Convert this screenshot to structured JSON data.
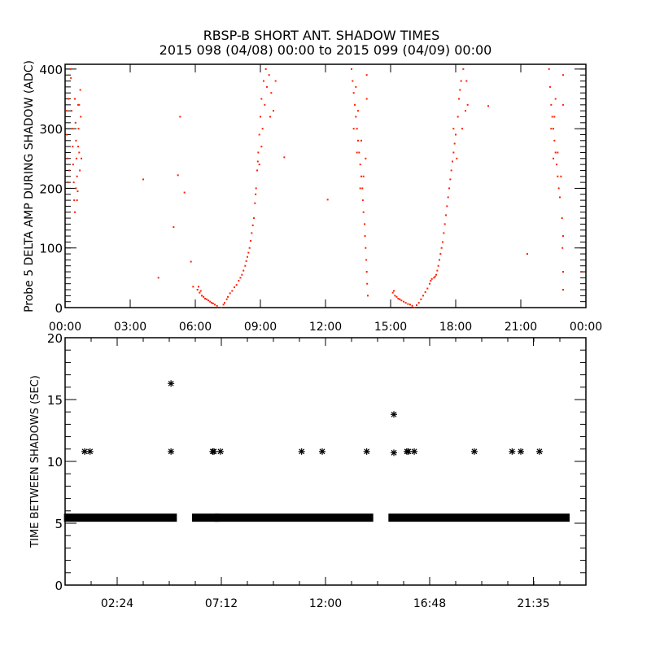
{
  "chart_data": [
    {
      "type": "scatter",
      "title": "RBSP-B SHORT ANT. SHADOW TIMES",
      "subtitle": "2015 098 (04/08) 00:00 to 2015 099 (04/09) 00:00",
      "xlabel": "",
      "ylabel": "Probe 5 DELTA AMP DURING SHADOW (ADC)",
      "x_unit": "hours since 2015-04-08 00:00",
      "xlim": [
        0,
        24
      ],
      "ylim": [
        0,
        408
      ],
      "xticks": [
        0,
        3,
        6,
        9,
        12,
        15,
        18,
        21,
        24
      ],
      "xtick_labels": [
        "00:00",
        "03:00",
        "06:00",
        "09:00",
        "12:00",
        "15:00",
        "18:00",
        "21:00",
        "00:00"
      ],
      "yticks": [
        0,
        100,
        200,
        300,
        400
      ],
      "ytick_labels": [
        "0",
        "100",
        "200",
        "300",
        "400"
      ],
      "grid": false,
      "color": "#ff2000",
      "points": [
        [
          0.05,
          330
        ],
        [
          0.08,
          290
        ],
        [
          0.1,
          250
        ],
        [
          0.12,
          210
        ],
        [
          0.15,
          350
        ],
        [
          0.2,
          230
        ],
        [
          0.25,
          400
        ],
        [
          0.27,
          385
        ],
        [
          0.3,
          330
        ],
        [
          0.32,
          300
        ],
        [
          0.35,
          270
        ],
        [
          0.37,
          240
        ],
        [
          0.4,
          210
        ],
        [
          0.42,
          180
        ],
        [
          0.45,
          350
        ],
        [
          0.48,
          310
        ],
        [
          0.5,
          280
        ],
        [
          0.52,
          250
        ],
        [
          0.55,
          220
        ],
        [
          0.58,
          195
        ],
        [
          0.6,
          340
        ],
        [
          0.62,
          300
        ],
        [
          0.65,
          260
        ],
        [
          0.68,
          230
        ],
        [
          0.7,
          365
        ],
        [
          0.72,
          320
        ],
        [
          0.75,
          250
        ],
        [
          0.45,
          160
        ],
        [
          0.5,
          200
        ],
        [
          0.6,
          270
        ],
        [
          0.55,
          180
        ],
        [
          0.65,
          340
        ],
        [
          3.6,
          215
        ],
        [
          4.3,
          50
        ],
        [
          5.0,
          135
        ],
        [
          5.2,
          222
        ],
        [
          5.3,
          320
        ],
        [
          5.5,
          193
        ],
        [
          5.8,
          77
        ],
        [
          5.9,
          35
        ],
        [
          10.1,
          252
        ],
        [
          12.1,
          181
        ],
        [
          19.5,
          338
        ],
        [
          21.3,
          90
        ],
        [
          23.8,
          60
        ],
        [
          6.1,
          30
        ],
        [
          6.15,
          35
        ],
        [
          6.2,
          25
        ],
        [
          6.25,
          28
        ],
        [
          6.3,
          20
        ],
        [
          6.38,
          18
        ],
        [
          6.45,
          15
        ],
        [
          6.52,
          14
        ],
        [
          6.6,
          12
        ],
        [
          6.68,
          10
        ],
        [
          6.75,
          8
        ],
        [
          6.82,
          7
        ],
        [
          6.9,
          5
        ],
        [
          7.0,
          3
        ],
        [
          7.2,
          0
        ],
        [
          7.3,
          5
        ],
        [
          7.35,
          8
        ],
        [
          7.45,
          14
        ],
        [
          7.5,
          18
        ],
        [
          7.6,
          24
        ],
        [
          7.7,
          28
        ],
        [
          7.8,
          34
        ],
        [
          7.9,
          38
        ],
        [
          8.0,
          45
        ],
        [
          8.08,
          50
        ],
        [
          8.15,
          55
        ],
        [
          8.22,
          62
        ],
        [
          8.3,
          70
        ],
        [
          8.35,
          78
        ],
        [
          8.4,
          85
        ],
        [
          8.45,
          92
        ],
        [
          8.5,
          100
        ],
        [
          8.55,
          112
        ],
        [
          8.6,
          125
        ],
        [
          8.65,
          138
        ],
        [
          8.7,
          150
        ],
        [
          8.75,
          175
        ],
        [
          8.78,
          190
        ],
        [
          8.8,
          200
        ],
        [
          8.85,
          230
        ],
        [
          8.88,
          245
        ],
        [
          8.9,
          260
        ],
        [
          8.95,
          290
        ],
        [
          9.0,
          320
        ],
        [
          9.05,
          350
        ],
        [
          9.1,
          300
        ],
        [
          9.15,
          380
        ],
        [
          9.2,
          340
        ],
        [
          9.25,
          400
        ],
        [
          9.3,
          370
        ],
        [
          9.4,
          390
        ],
        [
          9.45,
          320
        ],
        [
          9.5,
          360
        ],
        [
          9.6,
          330
        ],
        [
          9.7,
          380
        ],
        [
          9.05,
          270
        ],
        [
          8.95,
          240
        ],
        [
          13.2,
          400
        ],
        [
          13.25,
          380
        ],
        [
          13.3,
          360
        ],
        [
          13.35,
          340
        ],
        [
          13.4,
          320
        ],
        [
          13.45,
          300
        ],
        [
          13.5,
          280
        ],
        [
          13.55,
          260
        ],
        [
          13.6,
          240
        ],
        [
          13.65,
          220
        ],
        [
          13.7,
          200
        ],
        [
          13.72,
          180
        ],
        [
          13.75,
          160
        ],
        [
          13.8,
          140
        ],
        [
          13.82,
          120
        ],
        [
          13.85,
          100
        ],
        [
          13.88,
          80
        ],
        [
          13.9,
          60
        ],
        [
          13.92,
          40
        ],
        [
          13.95,
          20
        ],
        [
          13.3,
          300
        ],
        [
          13.45,
          260
        ],
        [
          13.6,
          200
        ],
        [
          13.75,
          220
        ],
        [
          13.85,
          250
        ],
        [
          13.9,
          350
        ],
        [
          13.9,
          390
        ],
        [
          13.5,
          330
        ],
        [
          13.4,
          370
        ],
        [
          13.65,
          280
        ],
        [
          15.1,
          25
        ],
        [
          15.15,
          28
        ],
        [
          15.2,
          20
        ],
        [
          15.28,
          18
        ],
        [
          15.35,
          15
        ],
        [
          15.42,
          14
        ],
        [
          15.5,
          12
        ],
        [
          15.6,
          10
        ],
        [
          15.7,
          8
        ],
        [
          15.8,
          6
        ],
        [
          15.9,
          5
        ],
        [
          16.0,
          3
        ],
        [
          16.1,
          0
        ],
        [
          16.2,
          4
        ],
        [
          16.3,
          8
        ],
        [
          16.4,
          14
        ],
        [
          16.5,
          20
        ],
        [
          16.6,
          26
        ],
        [
          16.7,
          32
        ],
        [
          16.8,
          40
        ],
        [
          16.85,
          45
        ],
        [
          16.9,
          48
        ],
        [
          17.0,
          50
        ],
        [
          17.05,
          52
        ],
        [
          17.1,
          55
        ],
        [
          17.15,
          62
        ],
        [
          17.2,
          70
        ],
        [
          17.25,
          80
        ],
        [
          17.3,
          90
        ],
        [
          17.35,
          100
        ],
        [
          17.4,
          110
        ],
        [
          17.45,
          125
        ],
        [
          17.5,
          140
        ],
        [
          17.55,
          155
        ],
        [
          17.6,
          170
        ],
        [
          17.65,
          185
        ],
        [
          17.7,
          200
        ],
        [
          17.75,
          215
        ],
        [
          17.8,
          230
        ],
        [
          17.85,
          245
        ],
        [
          17.9,
          260
        ],
        [
          17.95,
          275
        ],
        [
          18.0,
          290
        ],
        [
          18.05,
          250
        ],
        [
          18.1,
          320
        ],
        [
          18.15,
          350
        ],
        [
          18.2,
          365
        ],
        [
          18.25,
          380
        ],
        [
          18.3,
          300
        ],
        [
          18.35,
          400
        ],
        [
          18.45,
          330
        ],
        [
          18.5,
          380
        ],
        [
          18.55,
          340
        ],
        [
          17.9,
          300
        ],
        [
          22.3,
          400
        ],
        [
          22.35,
          370
        ],
        [
          22.4,
          340
        ],
        [
          22.45,
          320
        ],
        [
          22.5,
          300
        ],
        [
          22.55,
          280
        ],
        [
          22.6,
          260
        ],
        [
          22.65,
          240
        ],
        [
          22.7,
          220
        ],
        [
          22.75,
          200
        ],
        [
          22.8,
          185
        ],
        [
          22.4,
          300
        ],
        [
          22.55,
          320
        ],
        [
          22.7,
          260
        ],
        [
          22.85,
          220
        ],
        [
          22.9,
          150
        ],
        [
          22.92,
          100
        ],
        [
          22.95,
          60
        ],
        [
          22.95,
          30
        ],
        [
          22.95,
          390
        ],
        [
          22.95,
          340
        ],
        [
          22.95,
          120
        ],
        [
          22.6,
          350
        ],
        [
          22.5,
          250
        ]
      ]
    },
    {
      "type": "scatter",
      "title": "",
      "xlabel": "",
      "ylabel": "TIME BETWEEN SHADOWS (SEC)",
      "x_unit": "hours since 2015-04-08 00:00",
      "xlim": [
        0,
        24
      ],
      "ylim": [
        0,
        20
      ],
      "xticks": [
        2.4,
        7.2,
        12.0,
        16.8,
        21.583
      ],
      "xtick_labels": [
        "02:24",
        "07:12",
        "12:00",
        "16:48",
        "21:35"
      ],
      "yticks": [
        0,
        5,
        10,
        15,
        20
      ],
      "ytick_labels": [
        "0",
        "5",
        "10",
        "15",
        "20"
      ],
      "grid": false,
      "marker": "asterisk",
      "color": "#000000",
      "baseline_runs": [
        {
          "start": 0.1,
          "end": 5.0,
          "value": 5.45
        },
        {
          "start": 6.0,
          "end": 6.95,
          "value": 5.45
        },
        {
          "start": 7.05,
          "end": 14.05,
          "value": 5.45
        },
        {
          "start": 15.05,
          "end": 23.1,
          "value": 5.45
        }
      ],
      "points": [
        [
          0.9,
          10.8
        ],
        [
          1.15,
          10.8
        ],
        [
          4.88,
          10.8
        ],
        [
          4.88,
          16.3
        ],
        [
          6.8,
          10.8
        ],
        [
          6.86,
          10.8
        ],
        [
          7.16,
          10.8
        ],
        [
          10.9,
          10.8
        ],
        [
          11.85,
          10.8
        ],
        [
          13.9,
          10.8
        ],
        [
          15.15,
          10.7
        ],
        [
          15.15,
          13.8
        ],
        [
          15.75,
          10.8
        ],
        [
          15.82,
          10.8
        ],
        [
          16.09,
          10.8
        ],
        [
          18.86,
          10.8
        ],
        [
          20.6,
          10.8
        ],
        [
          21.0,
          10.8
        ],
        [
          21.86,
          10.8
        ]
      ]
    }
  ]
}
